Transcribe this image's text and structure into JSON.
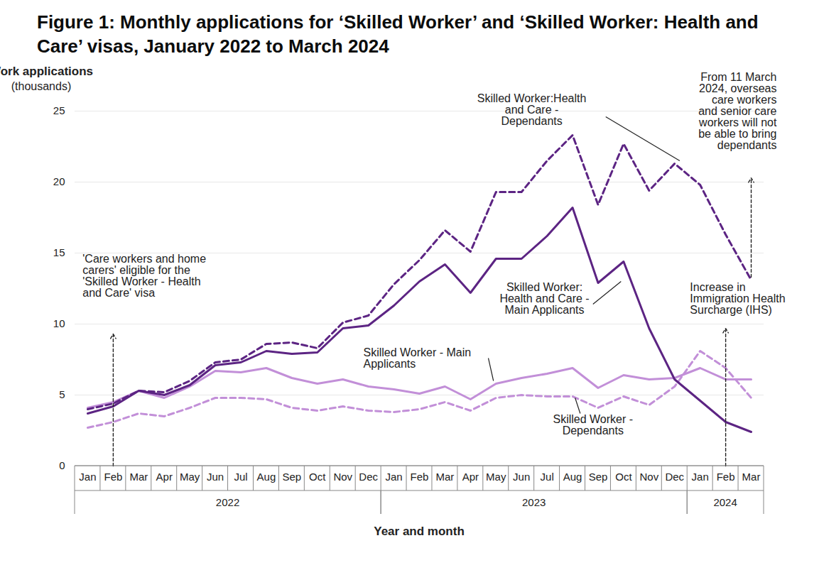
{
  "chart_data": {
    "type": "line",
    "title": "Figure 1: Monthly applications for ‘Skilled Worker’ and ‘Skilled Worker: Health and Care’ visas, January 2022 to March 2024",
    "y_label": "Work applications",
    "y_label_unit": "(thousands)",
    "x_label": "Year and month",
    "categories": [
      "Jan",
      "Feb",
      "Mar",
      "Apr",
      "May",
      "Jun",
      "Jul",
      "Aug",
      "Sep",
      "Oct",
      "Nov",
      "Dec",
      "Jan",
      "Feb",
      "Mar",
      "Apr",
      "May",
      "Jun",
      "Jul",
      "Aug",
      "Sep",
      "Oct",
      "Nov",
      "Dec",
      "Jan",
      "Feb",
      "Mar"
    ],
    "year_groups": [
      {
        "label": "2022",
        "count": 12
      },
      {
        "label": "2023",
        "count": 12
      },
      {
        "label": "2024",
        "count": 3
      }
    ],
    "ylim": [
      0,
      25
    ],
    "yticks": [
      0,
      5,
      10,
      15,
      20,
      25
    ],
    "grid": true,
    "series": [
      {
        "name": "Skilled Worker:Health and Care - Dependants",
        "color": "#5c2483",
        "line_style": "dashed",
        "values": [
          4.0,
          4.4,
          5.3,
          5.2,
          6.0,
          7.3,
          7.5,
          8.6,
          8.7,
          8.3,
          10.1,
          10.6,
          12.8,
          14.5,
          16.6,
          15.1,
          19.3,
          19.3,
          21.5,
          23.3,
          18.4,
          22.7,
          19.4,
          21.3,
          19.8,
          16.3,
          13.1
        ]
      },
      {
        "name": "Skilled Worker: Health and Care - Main Applicants",
        "color": "#5c2483",
        "line_style": "solid",
        "values": [
          3.7,
          4.2,
          5.3,
          5.0,
          5.7,
          7.1,
          7.3,
          8.1,
          7.9,
          8.0,
          9.7,
          9.9,
          11.3,
          13.0,
          14.2,
          12.2,
          14.6,
          14.6,
          16.2,
          18.2,
          12.9,
          14.4,
          9.7,
          6.1,
          4.6,
          3.1,
          2.4
        ]
      },
      {
        "name": "Skilled Worker - Main Applicants",
        "color": "#c28fd8",
        "line_style": "solid",
        "values": [
          4.1,
          4.5,
          5.3,
          4.8,
          5.6,
          6.7,
          6.6,
          6.9,
          6.2,
          5.8,
          6.1,
          5.6,
          5.4,
          5.1,
          5.6,
          4.7,
          5.8,
          6.2,
          6.5,
          6.9,
          5.5,
          6.4,
          6.1,
          6.2,
          6.9,
          6.1,
          6.1
        ]
      },
      {
        "name": "Skilled Worker - Dependants",
        "color": "#c28fd8",
        "line_style": "dashed",
        "values": [
          2.7,
          3.1,
          3.7,
          3.5,
          4.1,
          4.8,
          4.8,
          4.7,
          4.1,
          3.9,
          4.2,
          3.9,
          3.8,
          4.0,
          4.5,
          3.9,
          4.8,
          5.0,
          4.9,
          4.9,
          4.1,
          4.9,
          4.3,
          5.6,
          8.1,
          6.9,
          4.8
        ]
      }
    ],
    "annotations": [
      {
        "text": "'Care workers and home carers' eligible for the 'Skilled Worker - Health and Care' visa"
      },
      {
        "text": "Increase in Immigration Health Surcharge (IHS)"
      },
      {
        "text": "From 11 March 2024, overseas care workers and senior care workers will not be able to bring dependants"
      }
    ]
  }
}
